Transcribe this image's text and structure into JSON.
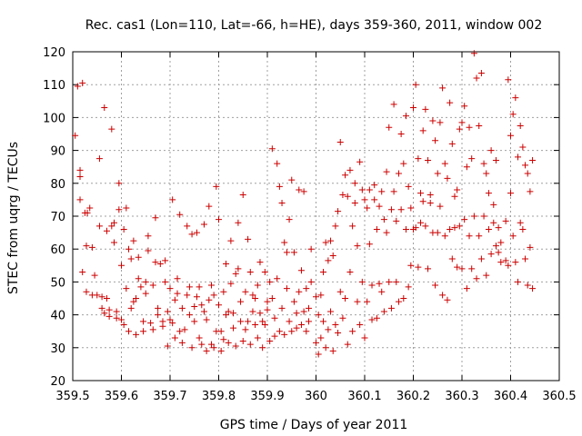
{
  "chart_data": {
    "type": "scatter",
    "title": "Rec. cas1 (Lon=110, Lat=-66, h=HE), days 359-360, 2011, window 002",
    "xlabel": "GPS time / Days of year 2011",
    "ylabel": "STEC from uqrg / TECUs",
    "xlim": [
      359.5,
      360.5
    ],
    "ylim": [
      20,
      120
    ],
    "xticks": [
      359.5,
      359.6,
      359.7,
      359.8,
      359.9,
      360,
      360.1,
      360.2,
      360.3,
      360.4,
      360.5
    ],
    "xtick_labels": [
      "359.5",
      "359.6",
      "359.7",
      "359.8",
      "359.9",
      "360",
      "360.1",
      "360.2",
      "360.3",
      "360.4",
      "360.5"
    ],
    "yticks": [
      20,
      30,
      40,
      50,
      60,
      70,
      80,
      90,
      100,
      110,
      120
    ],
    "ytick_labels": [
      "20",
      "30",
      "40",
      "50",
      "60",
      "70",
      "80",
      "90",
      "100",
      "110",
      "120"
    ],
    "grid": true,
    "marker": "plus",
    "color": "#cc0000",
    "points": [
      [
        359.505,
        94.5
      ],
      [
        359.51,
        109.5
      ],
      [
        359.515,
        84
      ],
      [
        359.52,
        110.5
      ],
      [
        359.515,
        82
      ],
      [
        359.515,
        75
      ],
      [
        359.52,
        53
      ],
      [
        359.525,
        71
      ],
      [
        359.53,
        71
      ],
      [
        359.528,
        61
      ],
      [
        359.535,
        72.5
      ],
      [
        359.528,
        47
      ],
      [
        359.54,
        60.5
      ],
      [
        359.54,
        46
      ],
      [
        359.545,
        52
      ],
      [
        359.55,
        46
      ],
      [
        359.555,
        87.5
      ],
      [
        359.555,
        67
      ],
      [
        359.56,
        45.5
      ],
      [
        359.56,
        42
      ],
      [
        359.565,
        103
      ],
      [
        359.565,
        40.5
      ],
      [
        359.57,
        45
      ],
      [
        359.57,
        65.5
      ],
      [
        359.575,
        41.5
      ],
      [
        359.575,
        39.5
      ],
      [
        359.58,
        96.5
      ],
      [
        359.58,
        67
      ],
      [
        359.585,
        68
      ],
      [
        359.585,
        62
      ],
      [
        359.59,
        41
      ],
      [
        359.59,
        39
      ],
      [
        359.595,
        80
      ],
      [
        359.595,
        72
      ],
      [
        359.6,
        55
      ],
      [
        359.6,
        38.5
      ],
      [
        359.605,
        37
      ],
      [
        359.605,
        66
      ],
      [
        359.61,
        72.5
      ],
      [
        359.61,
        48
      ],
      [
        359.615,
        60
      ],
      [
        359.615,
        35
      ],
      [
        359.62,
        42
      ],
      [
        359.62,
        57
      ],
      [
        359.625,
        62.5
      ],
      [
        359.625,
        44
      ],
      [
        359.63,
        45
      ],
      [
        359.63,
        34
      ],
      [
        359.635,
        51
      ],
      [
        359.635,
        57.5
      ],
      [
        359.64,
        48.5
      ],
      [
        359.645,
        38
      ],
      [
        359.645,
        35
      ],
      [
        359.65,
        46.5
      ],
      [
        359.65,
        50
      ],
      [
        359.655,
        64
      ],
      [
        359.655,
        59.5
      ],
      [
        359.66,
        37.5
      ],
      [
        359.665,
        49
      ],
      [
        359.665,
        35.5
      ],
      [
        359.67,
        69.5
      ],
      [
        359.67,
        56
      ],
      [
        359.675,
        40
      ],
      [
        359.675,
        42
      ],
      [
        359.68,
        55.5
      ],
      [
        359.685,
        38
      ],
      [
        359.685,
        36.5
      ],
      [
        359.69,
        50
      ],
      [
        359.69,
        56.5
      ],
      [
        359.695,
        41
      ],
      [
        359.695,
        30.5
      ],
      [
        359.7,
        48
      ],
      [
        359.7,
        38.5
      ],
      [
        359.705,
        75
      ],
      [
        359.705,
        37.5
      ],
      [
        359.71,
        33
      ],
      [
        359.71,
        44.5
      ],
      [
        359.715,
        46.5
      ],
      [
        359.715,
        51
      ],
      [
        359.72,
        70.5
      ],
      [
        359.72,
        35
      ],
      [
        359.725,
        42
      ],
      [
        359.725,
        31.5
      ],
      [
        359.73,
        35.5
      ],
      [
        359.735,
        67
      ],
      [
        359.735,
        46
      ],
      [
        359.74,
        48.5
      ],
      [
        359.74,
        40
      ],
      [
        359.745,
        64.5
      ],
      [
        359.745,
        30
      ],
      [
        359.75,
        42.5
      ],
      [
        359.75,
        38
      ],
      [
        359.755,
        45.5
      ],
      [
        359.755,
        65
      ],
      [
        359.76,
        48.5
      ],
      [
        359.76,
        33
      ],
      [
        359.765,
        43
      ],
      [
        359.765,
        31
      ],
      [
        359.77,
        67.5
      ],
      [
        359.77,
        41
      ],
      [
        359.775,
        38.5
      ],
      [
        359.775,
        29
      ],
      [
        359.78,
        73
      ],
      [
        359.78,
        44.5
      ],
      [
        359.785,
        49
      ],
      [
        359.785,
        31
      ],
      [
        359.79,
        46
      ],
      [
        359.79,
        30
      ],
      [
        359.795,
        35
      ],
      [
        359.795,
        79
      ],
      [
        359.8,
        69
      ],
      [
        359.8,
        43
      ],
      [
        359.805,
        29
      ],
      [
        359.805,
        35
      ],
      [
        359.81,
        32.5
      ],
      [
        359.81,
        47
      ],
      [
        359.815,
        55.5
      ],
      [
        359.815,
        40
      ],
      [
        359.82,
        41
      ],
      [
        359.82,
        31.5
      ],
      [
        359.825,
        62.5
      ],
      [
        359.825,
        49.5
      ],
      [
        359.83,
        36
      ],
      [
        359.83,
        40.5
      ],
      [
        359.835,
        52.5
      ],
      [
        359.835,
        30.5
      ],
      [
        359.84,
        68
      ],
      [
        359.84,
        54
      ],
      [
        359.845,
        44
      ],
      [
        359.845,
        38
      ],
      [
        359.85,
        76.5
      ],
      [
        359.85,
        32
      ],
      [
        359.855,
        47
      ],
      [
        359.855,
        35.5
      ],
      [
        359.86,
        63
      ],
      [
        359.86,
        38
      ],
      [
        359.865,
        53
      ],
      [
        359.865,
        31
      ],
      [
        359.87,
        46
      ],
      [
        359.87,
        41
      ],
      [
        359.875,
        37
      ],
      [
        359.875,
        45
      ],
      [
        359.88,
        33
      ],
      [
        359.88,
        49
      ],
      [
        359.885,
        56
      ],
      [
        359.885,
        40.5
      ],
      [
        359.89,
        38
      ],
      [
        359.89,
        30
      ],
      [
        359.895,
        53
      ],
      [
        359.895,
        37
      ],
      [
        359.9,
        44
      ],
      [
        359.9,
        41.5
      ],
      [
        359.905,
        50
      ],
      [
        359.905,
        32
      ],
      [
        359.91,
        90.5
      ],
      [
        359.91,
        45
      ],
      [
        359.915,
        33.5
      ],
      [
        359.915,
        39
      ],
      [
        359.92,
        86
      ],
      [
        359.92,
        51
      ],
      [
        359.925,
        79
      ],
      [
        359.925,
        35
      ],
      [
        359.93,
        74
      ],
      [
        359.93,
        42
      ],
      [
        359.935,
        62
      ],
      [
        359.935,
        34
      ],
      [
        359.94,
        59
      ],
      [
        359.94,
        48
      ],
      [
        359.945,
        69
      ],
      [
        359.945,
        38
      ],
      [
        359.95,
        81
      ],
      [
        359.95,
        35
      ],
      [
        359.955,
        59
      ],
      [
        359.955,
        44
      ],
      [
        359.96,
        36
      ],
      [
        359.96,
        40.5
      ],
      [
        359.965,
        78
      ],
      [
        359.965,
        47
      ],
      [
        359.97,
        53.5
      ],
      [
        359.97,
        37
      ],
      [
        359.975,
        77.5
      ],
      [
        359.975,
        41
      ],
      [
        359.98,
        35
      ],
      [
        359.98,
        48
      ],
      [
        359.985,
        42
      ],
      [
        359.985,
        38
      ],
      [
        359.99,
        60
      ],
      [
        359.99,
        50
      ],
      [
        360.0,
        45.5
      ],
      [
        360.0,
        31.5
      ],
      [
        360.005,
        40
      ],
      [
        360.005,
        28
      ],
      [
        360.01,
        46
      ],
      [
        360.01,
        33
      ],
      [
        360.015,
        53
      ],
      [
        360.015,
        38
      ],
      [
        360.02,
        62
      ],
      [
        360.02,
        30
      ],
      [
        360.025,
        56.5
      ],
      [
        360.025,
        35.5
      ],
      [
        360.03,
        62.5
      ],
      [
        360.03,
        41
      ],
      [
        360.035,
        58
      ],
      [
        360.035,
        29
      ],
      [
        360.04,
        67
      ],
      [
        360.04,
        37
      ],
      [
        360.045,
        71.5
      ],
      [
        360.045,
        34.5
      ],
      [
        360.05,
        92.5
      ],
      [
        360.05,
        47
      ],
      [
        360.055,
        76.5
      ],
      [
        360.055,
        39
      ],
      [
        360.06,
        82.5
      ],
      [
        360.06,
        45
      ],
      [
        360.065,
        76
      ],
      [
        360.065,
        31
      ],
      [
        360.07,
        84
      ],
      [
        360.07,
        53
      ],
      [
        360.075,
        67
      ],
      [
        360.075,
        35
      ],
      [
        360.08,
        80
      ],
      [
        360.08,
        74
      ],
      [
        360.085,
        61
      ],
      [
        360.085,
        44
      ],
      [
        360.09,
        86.5
      ],
      [
        360.09,
        37
      ],
      [
        360.095,
        78
      ],
      [
        360.095,
        50
      ],
      [
        360.1,
        75
      ],
      [
        360.1,
        33
      ],
      [
        360.105,
        72.5
      ],
      [
        360.105,
        44
      ],
      [
        360.11,
        78
      ],
      [
        360.11,
        61.5
      ],
      [
        360.115,
        49
      ],
      [
        360.115,
        38.5
      ],
      [
        360.12,
        79.5
      ],
      [
        360.12,
        75
      ],
      [
        360.125,
        66
      ],
      [
        360.125,
        39
      ],
      [
        360.13,
        73
      ],
      [
        360.13,
        49.5
      ],
      [
        360.135,
        77.5
      ],
      [
        360.135,
        47
      ],
      [
        360.14,
        69
      ],
      [
        360.14,
        41
      ],
      [
        360.145,
        83.5
      ],
      [
        360.145,
        65
      ],
      [
        360.15,
        97
      ],
      [
        360.15,
        50
      ],
      [
        360.155,
        72
      ],
      [
        360.155,
        42
      ],
      [
        360.16,
        104
      ],
      [
        360.16,
        77.5
      ],
      [
        360.165,
        68.5
      ],
      [
        360.165,
        50
      ],
      [
        360.17,
        83
      ],
      [
        360.17,
        44
      ],
      [
        360.175,
        95
      ],
      [
        360.175,
        72
      ],
      [
        360.18,
        86
      ],
      [
        360.18,
        45
      ],
      [
        360.185,
        100.5
      ],
      [
        360.185,
        66
      ],
      [
        360.19,
        79
      ],
      [
        360.19,
        48.5
      ],
      [
        360.195,
        72.5
      ],
      [
        360.195,
        55
      ],
      [
        360.2,
        103
      ],
      [
        360.2,
        66
      ],
      [
        360.205,
        110
      ],
      [
        360.205,
        66.5
      ],
      [
        360.21,
        87.5
      ],
      [
        360.21,
        54.5
      ],
      [
        360.215,
        77
      ],
      [
        360.215,
        68
      ],
      [
        360.22,
        96
      ],
      [
        360.22,
        74.5
      ],
      [
        360.225,
        102.5
      ],
      [
        360.225,
        67
      ],
      [
        360.23,
        87
      ],
      [
        360.23,
        54
      ],
      [
        360.235,
        74
      ],
      [
        360.235,
        76.5
      ],
      [
        360.24,
        99
      ],
      [
        360.24,
        65
      ],
      [
        360.245,
        93
      ],
      [
        360.245,
        49
      ],
      [
        360.25,
        83
      ],
      [
        360.25,
        65
      ],
      [
        360.255,
        98.5
      ],
      [
        360.255,
        73
      ],
      [
        360.26,
        109
      ],
      [
        360.26,
        46
      ],
      [
        360.265,
        86
      ],
      [
        360.265,
        64
      ],
      [
        360.27,
        81.5
      ],
      [
        360.27,
        44.5
      ],
      [
        360.275,
        104.5
      ],
      [
        360.275,
        66
      ],
      [
        360.28,
        92
      ],
      [
        360.28,
        57
      ],
      [
        360.285,
        66.5
      ],
      [
        360.285,
        76
      ],
      [
        360.29,
        78
      ],
      [
        360.29,
        54.5
      ],
      [
        360.295,
        96.5
      ],
      [
        360.295,
        67
      ],
      [
        360.3,
        98.5
      ],
      [
        360.3,
        54
      ],
      [
        360.305,
        103.5
      ],
      [
        360.305,
        69
      ],
      [
        360.31,
        85
      ],
      [
        360.31,
        48
      ],
      [
        360.315,
        97
      ],
      [
        360.315,
        64
      ],
      [
        360.32,
        87.5
      ],
      [
        360.32,
        54
      ],
      [
        360.325,
        119.5
      ],
      [
        360.325,
        70
      ],
      [
        360.33,
        112
      ],
      [
        360.33,
        51
      ],
      [
        360.335,
        97.5
      ],
      [
        360.335,
        64
      ],
      [
        360.34,
        113.5
      ],
      [
        360.34,
        57
      ],
      [
        360.345,
        86
      ],
      [
        360.345,
        70
      ],
      [
        360.35,
        83
      ],
      [
        360.35,
        52
      ],
      [
        360.355,
        77
      ],
      [
        360.355,
        66
      ],
      [
        360.36,
        90
      ],
      [
        360.36,
        58.5
      ],
      [
        360.365,
        73.5
      ],
      [
        360.365,
        68
      ],
      [
        360.37,
        87
      ],
      [
        360.37,
        61
      ],
      [
        360.375,
        66.5
      ],
      [
        360.375,
        59
      ],
      [
        360.38,
        62
      ],
      [
        360.38,
        56
      ],
      [
        360.39,
        68.5
      ],
      [
        360.39,
        56.5
      ],
      [
        360.395,
        111.5
      ],
      [
        360.395,
        55
      ],
      [
        360.4,
        94.5
      ],
      [
        360.4,
        77
      ],
      [
        360.405,
        101
      ],
      [
        360.405,
        64
      ],
      [
        360.41,
        106
      ],
      [
        360.41,
        56
      ],
      [
        360.415,
        88
      ],
      [
        360.415,
        50
      ],
      [
        360.42,
        97.5
      ],
      [
        360.42,
        68
      ],
      [
        360.425,
        91
      ],
      [
        360.425,
        66
      ],
      [
        360.43,
        85.5
      ],
      [
        360.43,
        57
      ],
      [
        360.435,
        83
      ],
      [
        360.435,
        49
      ],
      [
        360.44,
        77.5
      ],
      [
        360.44,
        60.5
      ],
      [
        360.445,
        87
      ],
      [
        360.445,
        48
      ]
    ]
  }
}
